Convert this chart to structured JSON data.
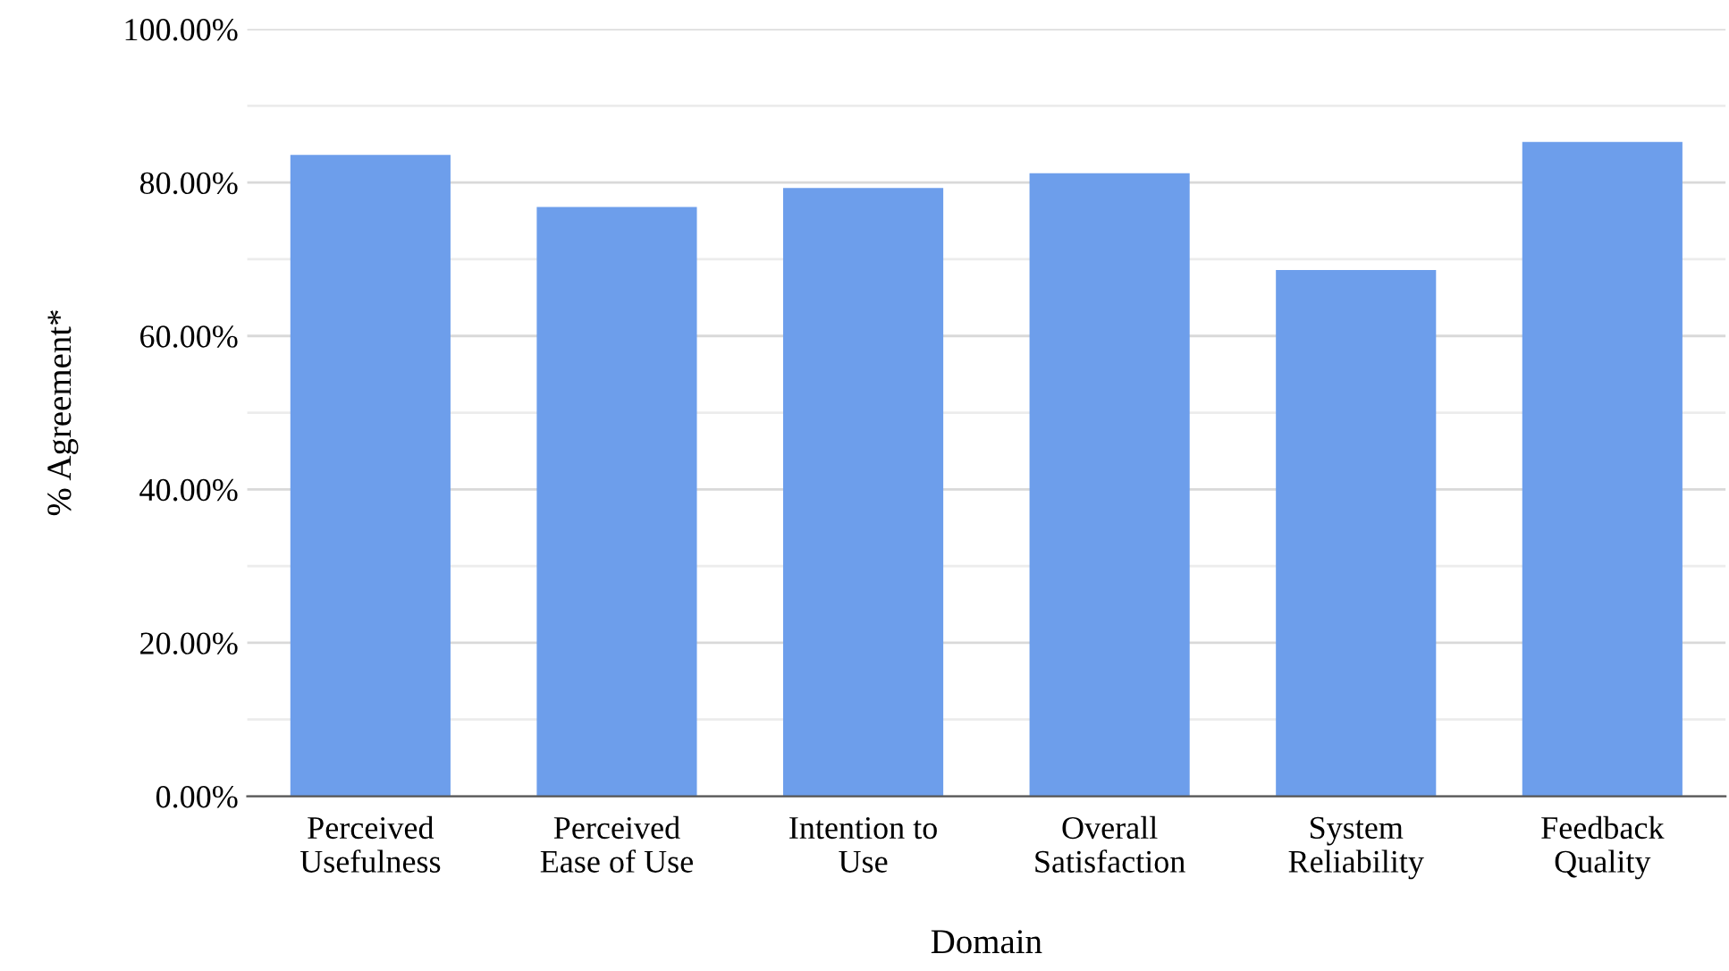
{
  "chart_data": {
    "type": "bar",
    "xlabel": "Domain",
    "ylabel": "% Agreement*",
    "categories": [
      "Perceived\nUsefulness",
      "Perceived\nEase of Use",
      "Intention to\nUse",
      "Overall\nSatisfaction",
      "System\nReliability",
      "Feedback\nQuality"
    ],
    "values": [
      83.6,
      76.8,
      79.3,
      81.2,
      68.6,
      85.3
    ],
    "color": "#6d9eeb",
    "ylim": [
      0,
      100
    ],
    "yticks": [
      {
        "value": 0,
        "label": "0.00%"
      },
      {
        "value": 10,
        "label": null
      },
      {
        "value": 20,
        "label": "20.00%"
      },
      {
        "value": 30,
        "label": null
      },
      {
        "value": 40,
        "label": "40.00%"
      },
      {
        "value": 50,
        "label": null
      },
      {
        "value": 60,
        "label": "60.00%"
      },
      {
        "value": 70,
        "label": null
      },
      {
        "value": 80,
        "label": "80.00%"
      },
      {
        "value": 90,
        "label": null
      },
      {
        "value": 100,
        "label": "100.00%"
      }
    ],
    "grid": "y",
    "legend": false
  }
}
